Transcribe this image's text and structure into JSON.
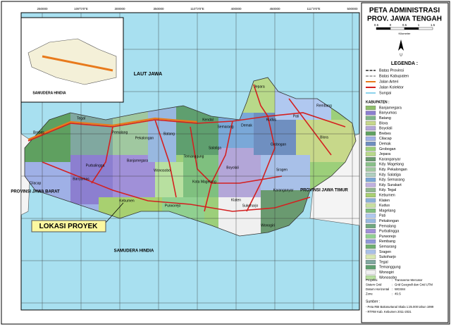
{
  "title": [
    "PETA ADMINISTRASI",
    "PROV. JAWA TENGAH"
  ],
  "scale": {
    "labels": [
      "0.5",
      "0",
      "0.5",
      "1",
      "1.5"
    ],
    "unit": "Kilometer"
  },
  "north": "U",
  "legend": {
    "title": "LEGENDA :",
    "lines": [
      {
        "label": "Batas Provinsi",
        "color": "#000000"
      },
      {
        "label": "Batas Kabupaten",
        "color": "#777777"
      },
      {
        "label": "Jalan Arteri",
        "color": "#e87a1c"
      },
      {
        "label": "Jalan Kolektor",
        "color": "#d42020"
      },
      {
        "label": "Sungai",
        "color": "#3fb6e0"
      }
    ],
    "kabupaten_title": "KABUPATEN :",
    "kabupaten": [
      {
        "name": "Banjarnegara",
        "color": "#8fbf6a"
      },
      {
        "name": "Banyumas",
        "color": "#8c7fd0"
      },
      {
        "name": "Batang",
        "color": "#7fb58a"
      },
      {
        "name": "Blora",
        "color": "#c7d88a"
      },
      {
        "name": "Boyolali",
        "color": "#b3a6d8"
      },
      {
        "name": "Brebes",
        "color": "#5fa060"
      },
      {
        "name": "Cilacap",
        "color": "#9fb0e6"
      },
      {
        "name": "Demak",
        "color": "#6f8fc0"
      },
      {
        "name": "Grobogan",
        "color": "#9ccf7a"
      },
      {
        "name": "Jepara",
        "color": "#b8d98a"
      },
      {
        "name": "Karanganyar",
        "color": "#6a9a70"
      },
      {
        "name": "Kdy. Magelang",
        "color": "#88c088"
      },
      {
        "name": "Kdy. Pekalongan",
        "color": "#a0c8a0"
      },
      {
        "name": "Kdy. Salatiga",
        "color": "#b0d0c0"
      },
      {
        "name": "Kdy. Semarang",
        "color": "#7aa8d8"
      },
      {
        "name": "Kdy. Surakart",
        "color": "#c0b0e0"
      },
      {
        "name": "Kdy. Tegal",
        "color": "#90b890"
      },
      {
        "name": "Kebumen",
        "color": "#a8d070"
      },
      {
        "name": "Klaten",
        "color": "#8ab0d8"
      },
      {
        "name": "Kudus",
        "color": "#c8e0a0"
      },
      {
        "name": "Magelang",
        "color": "#7fc07f"
      },
      {
        "name": "Pati",
        "color": "#b0c8f0"
      },
      {
        "name": "Pekalongan",
        "color": "#98b8e0"
      },
      {
        "name": "Pemalang",
        "color": "#6fa87f"
      },
      {
        "name": "Purbalingga",
        "color": "#a090d8"
      },
      {
        "name": "Purworejo",
        "color": "#90d090"
      },
      {
        "name": "Rembang",
        "color": "#9098d8"
      },
      {
        "name": "Semarang",
        "color": "#70b070"
      },
      {
        "name": "Sragen",
        "color": "#a8c0e8"
      },
      {
        "name": "Sukoharjo",
        "color": "#d8e8b0"
      },
      {
        "name": "Tegal",
        "color": "#80a8a0"
      },
      {
        "name": "Temanggung",
        "color": "#5f9f6f"
      },
      {
        "name": "Wonogiri",
        "color": "#f0f0f0"
      },
      {
        "name": "Wonosobo",
        "color": "#b8e0a0"
      }
    ]
  },
  "info": [
    [
      "Proyeksi",
      ":",
      "Transverse Mercator"
    ],
    [
      "Sistem Grid",
      ":",
      "Grid Geografi dan Grid UTM"
    ],
    [
      "Datum Horizontal",
      ":",
      "WGS84"
    ],
    [
      "Zone",
      ":",
      "49.S"
    ]
  ],
  "sources": {
    "title": "Sumber :",
    "lines": [
      "- Peta RBI Bakosurtanal Skala 1:25.000 tahun 1999",
      "- RTRW Kab. Kebumen 2011-2031"
    ]
  },
  "grid_top": [
    "250000",
    "109°0'0\"E",
    "300000",
    "350000",
    "110°0'0\"E",
    "400000",
    "450000",
    "111°0'0\"E",
    "500000"
  ],
  "map_labels": [
    "LAUT JAWA",
    "SAMUDERA HINDIA",
    "SAMUDERA HINDIA",
    "PROVINSI JAWA BARAT",
    "PROVINSI JAWA TIMUR",
    "Jepara",
    "Rembang",
    "Pati",
    "Kudus",
    "Demak",
    "Kendal",
    "Semarang",
    "Blora",
    "Grobogan",
    "Brebes",
    "Tegal",
    "Pemalang",
    "Pekalongan",
    "Batang",
    "Banyumas",
    "Cilacap",
    "Purbalingga",
    "Banjarnegara",
    "Wonosobo",
    "Temanggung",
    "Kota Magelang",
    "Boyolali",
    "Sragen",
    "Klaten",
    "Sukoharjo",
    "Karanganyar",
    "Wonogiri",
    "Kebumen",
    "Purworejo",
    "Salatiga"
  ],
  "callout": "LOKASI PROYEK"
}
